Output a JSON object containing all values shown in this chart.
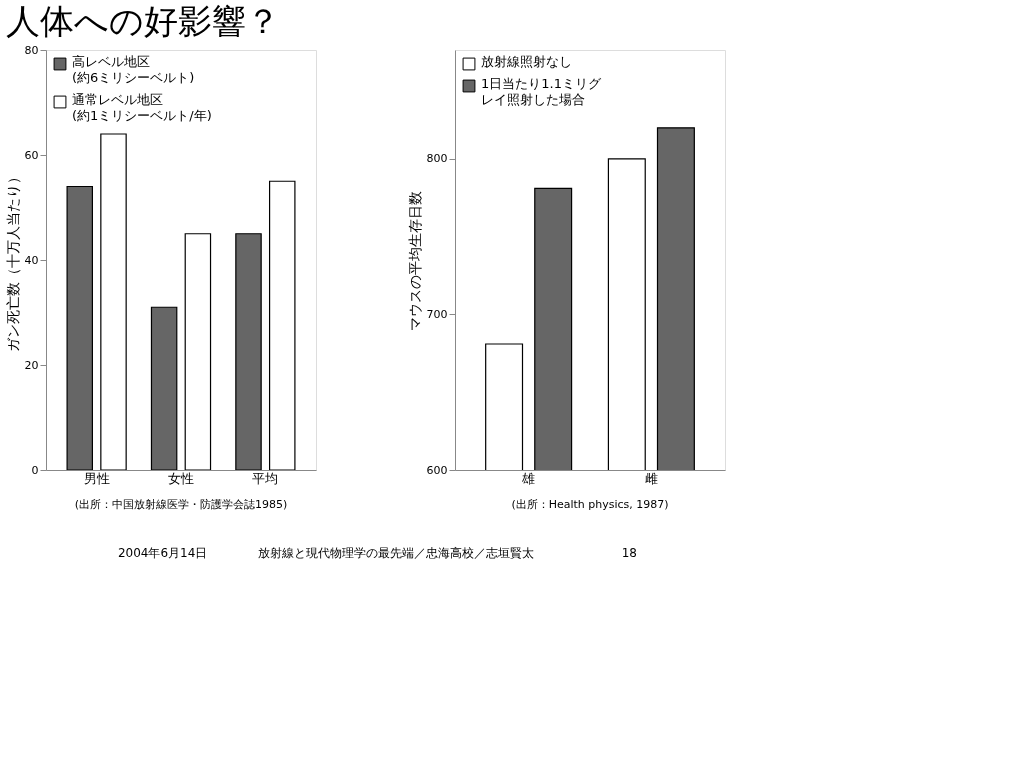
{
  "chart_data": [
    {
      "type": "bar",
      "title": "人体への好影響？",
      "ylabel": "ガン死亡数（十万人当たり）",
      "categories": [
        "男性",
        "女性",
        "平均"
      ],
      "ylim": [
        0,
        80
      ],
      "yticks": [
        0,
        20,
        40,
        60,
        80
      ],
      "grid": false,
      "legend": "top left",
      "series": [
        {
          "name": "高レベル地区(約6ミリシーベルト)",
          "color": "#666666",
          "values": [
            54,
            31,
            45
          ]
        },
        {
          "name": "通常レベル地区(約1ミリシーベルト/年)",
          "color": "#ffffff",
          "values": [
            64,
            45,
            55
          ]
        }
      ],
      "annotations": [
        "(出所：中国放射線医学・防護学会誌1985)",
        "2004年6月14日",
        "放射線と現代物理学の最先端／忠海高校／志垣賢太",
        "18"
      ]
    },
    {
      "type": "bar",
      "ylabel": "マウスの平均生存日数",
      "categories": [
        "雄",
        "雌"
      ],
      "ylim": [
        600,
        870
      ],
      "yticks": [
        600,
        700,
        800
      ],
      "grid": false,
      "legend": "top left",
      "series": [
        {
          "name": "放射線照射なし",
          "color": "#ffffff",
          "values": [
            681,
            800
          ]
        },
        {
          "name": "1日当たり1.1ミリグレイ照射した場合",
          "color": "#666666",
          "values": [
            781,
            820
          ]
        }
      ],
      "annotations": [
        "(出所：Health physics, 1987)"
      ]
    }
  ]
}
